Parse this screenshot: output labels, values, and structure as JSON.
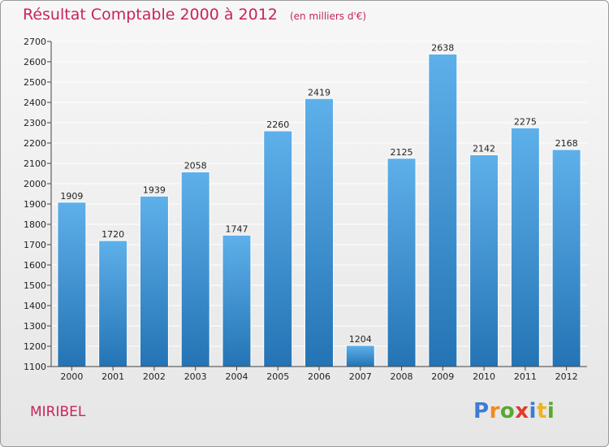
{
  "chart_data": {
    "type": "bar",
    "title": "Résultat Comptable 2000 à 2012",
    "unit": "(en milliers d'€)",
    "categories": [
      "2000",
      "2001",
      "2002",
      "2003",
      "2004",
      "2005",
      "2006",
      "2007",
      "2008",
      "2009",
      "2010",
      "2011",
      "2012"
    ],
    "values": [
      1909,
      1720,
      1939,
      2058,
      1747,
      2260,
      2419,
      1204,
      2125,
      2638,
      2142,
      2275,
      2168
    ],
    "ylim": [
      1100,
      2700
    ],
    "yticks": [
      1100,
      1200,
      1300,
      1400,
      1500,
      1600,
      1700,
      1800,
      1900,
      2000,
      2100,
      2200,
      2300,
      2400,
      2500,
      2600,
      2700
    ],
    "xlabel": "",
    "ylabel": "",
    "grid": true,
    "colors": {
      "bar_top": "#5eb0ea",
      "bar_bottom": "#2474b5",
      "grid": "#ffffff",
      "title": "#c8245c"
    }
  },
  "place": "MIRIBEL",
  "logo": {
    "letters": [
      "P",
      "r",
      "o",
      "x",
      "i",
      "t",
      "i"
    ],
    "colors": [
      "#3c7dd0",
      "#f08a1c",
      "#58a830",
      "#e23a2f",
      "#3c7dd0",
      "#f0b41c",
      "#58a830"
    ]
  }
}
